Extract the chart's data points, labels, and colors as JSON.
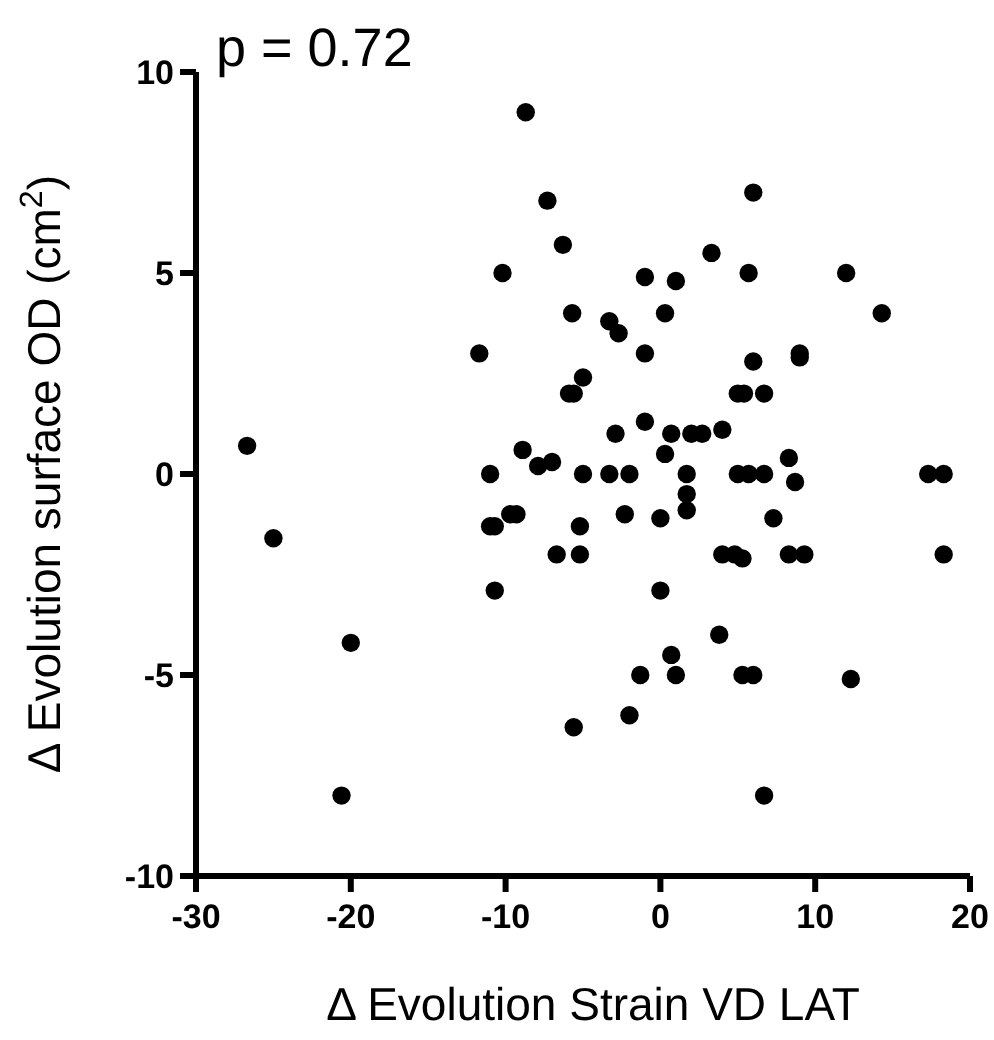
{
  "chart_data": {
    "type": "scatter",
    "xlabel": "Δ Evolution Strain VD LAT",
    "ylabel": "Δ Evolution surface OD (cm$^{2}$)",
    "annotations": [
      "p = 0.72"
    ],
    "xlim": [
      -30,
      20
    ],
    "xticks": [
      -30,
      -20,
      -10,
      0,
      10,
      20
    ],
    "ylim": [
      -10,
      10
    ],
    "yticks": [
      -10,
      -5,
      0,
      5,
      10
    ],
    "grid": false,
    "marker": "circle",
    "series": [
      {
        "color": "#000000",
        "x": [
          -8.7,
          -7.3,
          -6.3,
          -10.2,
          -5.7,
          -11.7,
          -5.0,
          -5.9,
          -5.6,
          -26.7,
          -8.9,
          -7.9,
          -7.0,
          -11.0,
          -5.0,
          6.0,
          3.3,
          -1.0,
          1.0,
          5.7,
          12.0,
          14.3,
          -3.3,
          -2.7,
          0.3,
          -1.0,
          6.0,
          9.0,
          9.0,
          5.0,
          5.4,
          6.7,
          -1.0,
          -2.9,
          0.7,
          2.0,
          2.7,
          4.0,
          0.3,
          8.3,
          -3.3,
          -2.0,
          1.7,
          5.0,
          5.7,
          6.7,
          8.7,
          17.3,
          18.3,
          1.7,
          1.7,
          -2.3,
          0.0,
          7.3,
          -5.2,
          -5.2,
          4.0,
          4.8,
          5.3,
          8.3,
          9.3,
          18.3,
          0.0,
          3.8,
          0.7,
          -1.3,
          1.0,
          5.3,
          6.0,
          12.3,
          -2.0,
          6.7,
          -25.0,
          -11.0,
          -10.7,
          -9.7,
          -9.3,
          -6.7,
          -10.7,
          -20.0,
          -5.6,
          -20.6
        ],
        "values": [
          9.0,
          6.8,
          5.7,
          5.0,
          4.0,
          3.0,
          2.4,
          2.0,
          2.0,
          0.7,
          0.6,
          0.2,
          0.3,
          0.0,
          0.0,
          7.0,
          5.5,
          4.9,
          4.8,
          5.0,
          5.0,
          4.0,
          3.8,
          3.5,
          4.0,
          3.0,
          2.8,
          3.0,
          2.9,
          2.0,
          2.0,
          2.0,
          1.3,
          1.0,
          1.0,
          1.0,
          1.0,
          1.1,
          0.5,
          0.4,
          0.0,
          0.0,
          0.0,
          0.0,
          0.0,
          0.0,
          -0.2,
          0.0,
          0.0,
          -0.5,
          -0.9,
          -1.0,
          -1.1,
          -1.1,
          -1.3,
          -2.0,
          -2.0,
          -2.0,
          -2.1,
          -2.0,
          -2.0,
          -2.0,
          -2.9,
          -4.0,
          -4.5,
          -5.0,
          -5.0,
          -5.0,
          -5.0,
          -5.1,
          -6.0,
          -8.0,
          -1.6,
          -1.3,
          -1.3,
          -1.0,
          -1.0,
          -2.0,
          -2.9,
          -4.2,
          -6.3,
          -8.0
        ]
      }
    ]
  }
}
